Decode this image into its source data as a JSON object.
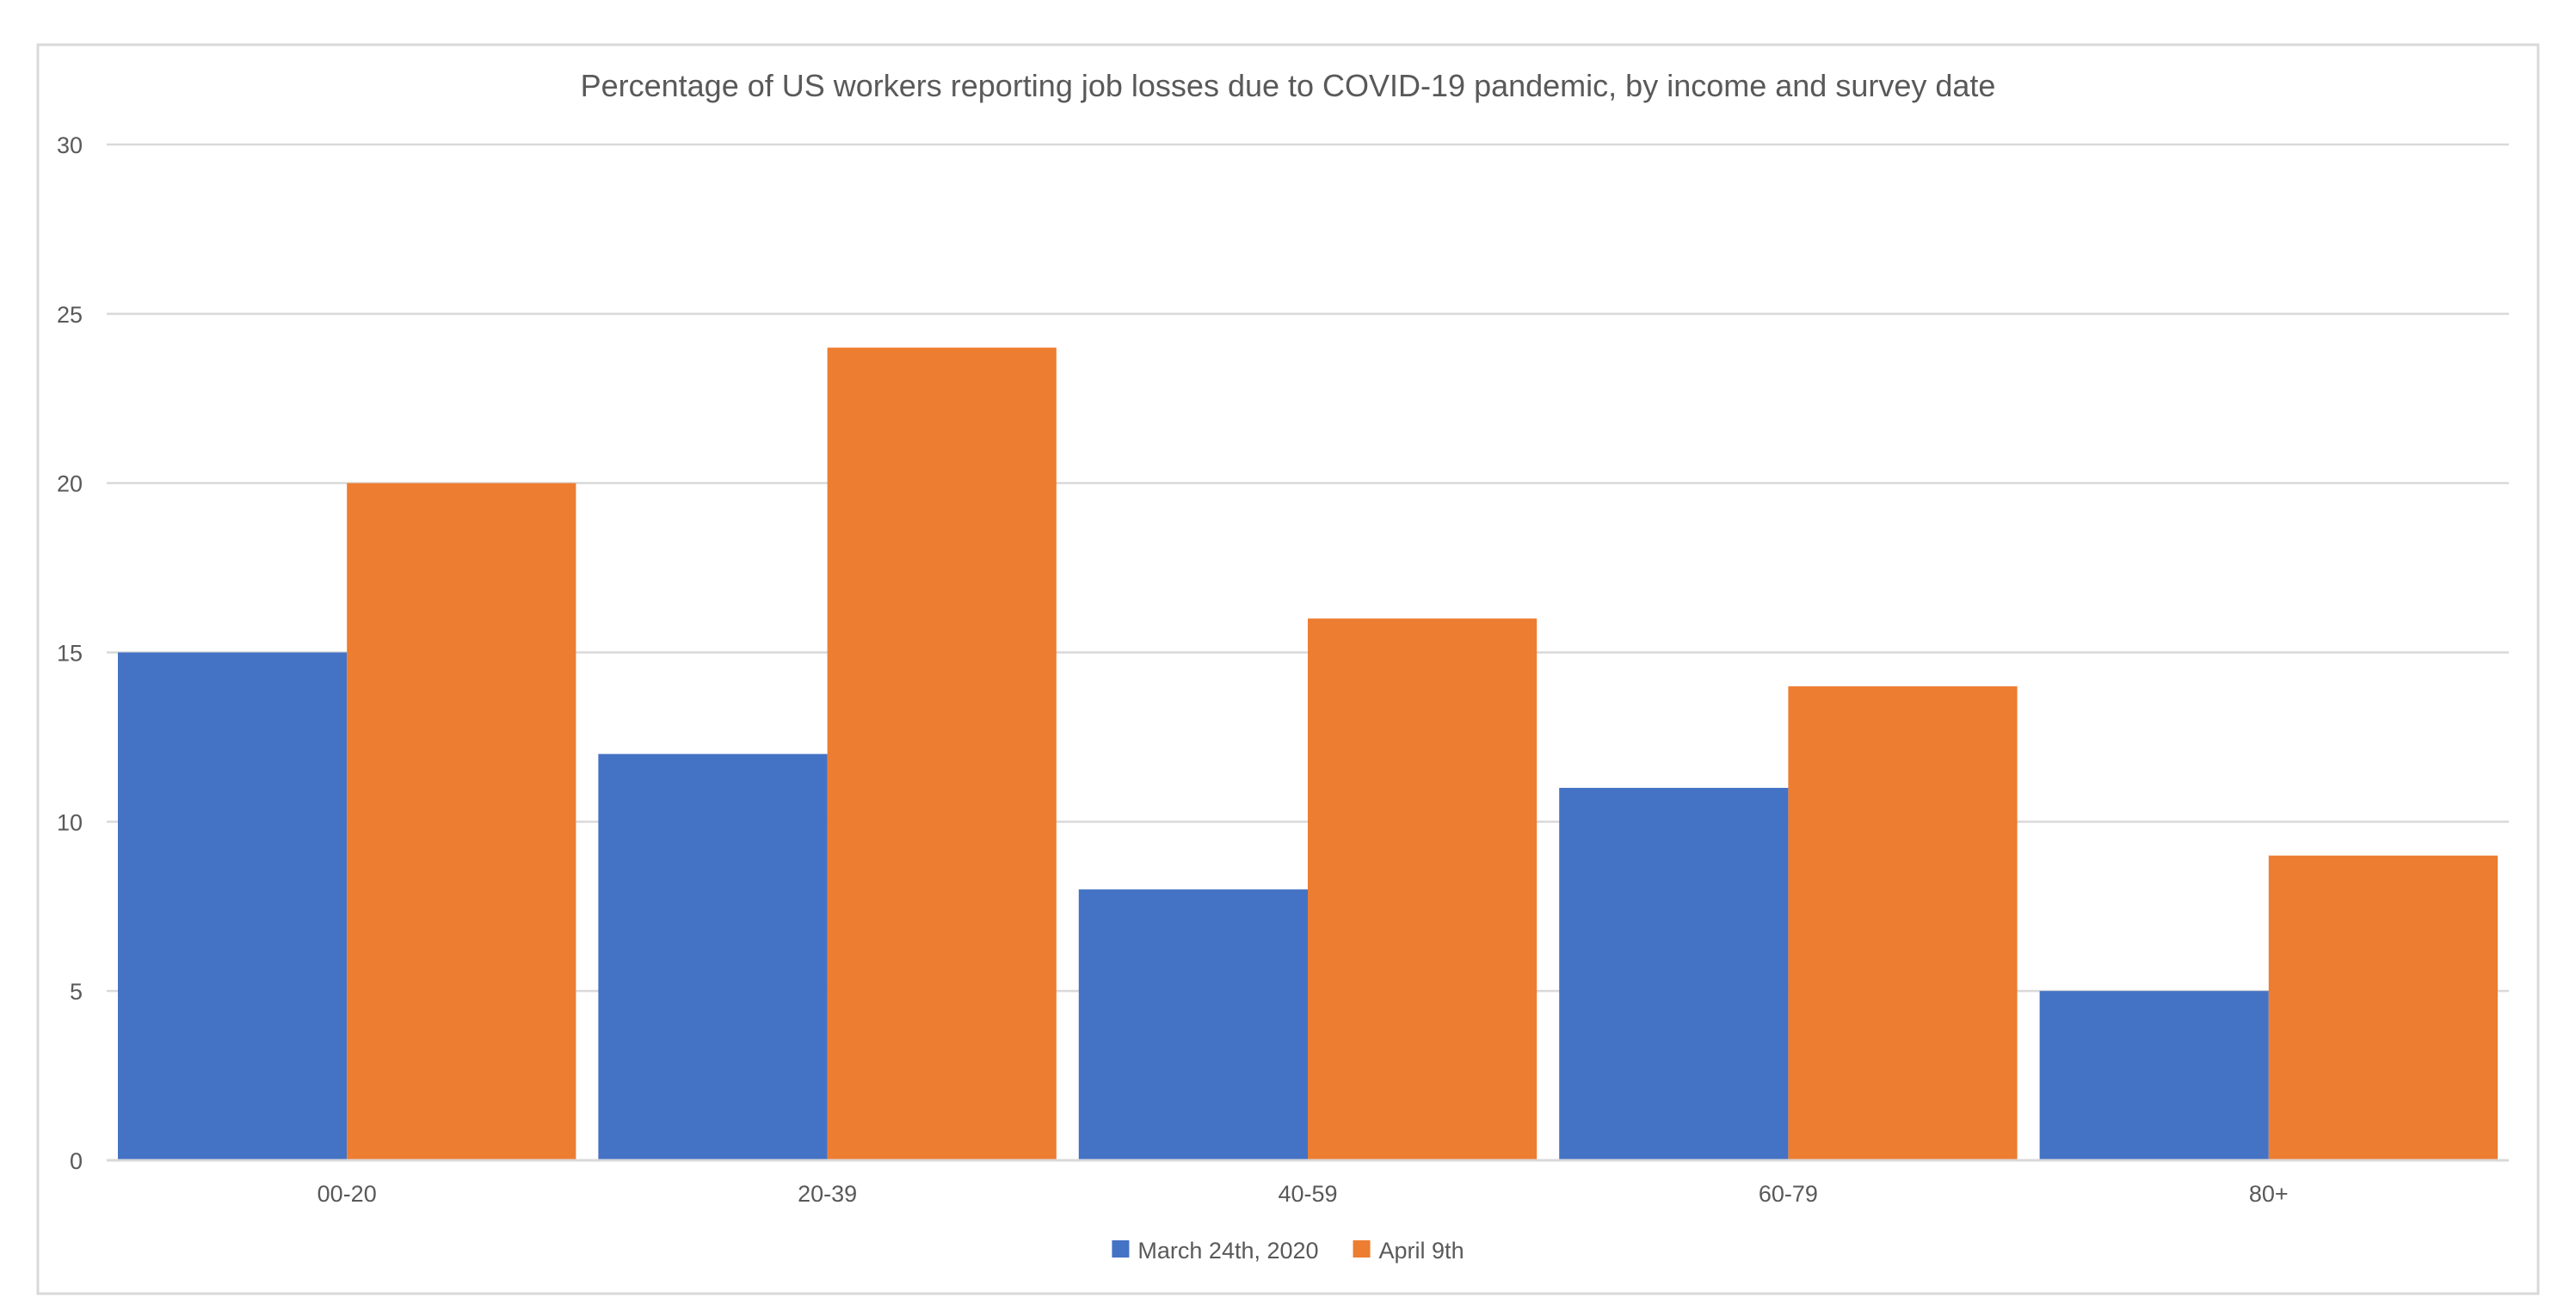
{
  "chart_data": {
    "type": "bar",
    "title": "Percentage of US workers reporting job losses due to COVID-19 pandemic, by income and survey date",
    "xlabel": "",
    "ylabel": "",
    "categories": [
      "00-20",
      "20-39",
      "40-59",
      "60-79",
      "80+"
    ],
    "series": [
      {
        "name": "March 24th, 2020",
        "color": "#4472C4",
        "values": [
          15,
          12,
          8,
          11,
          5
        ]
      },
      {
        "name": "April 9th",
        "color": "#ED7D31",
        "values": [
          20,
          24,
          16,
          14,
          9
        ]
      }
    ],
    "ylim": [
      0,
      30
    ],
    "yticks": [
      0,
      5,
      10,
      15,
      20,
      25,
      30
    ],
    "grid": true,
    "legend_position": "bottom"
  }
}
